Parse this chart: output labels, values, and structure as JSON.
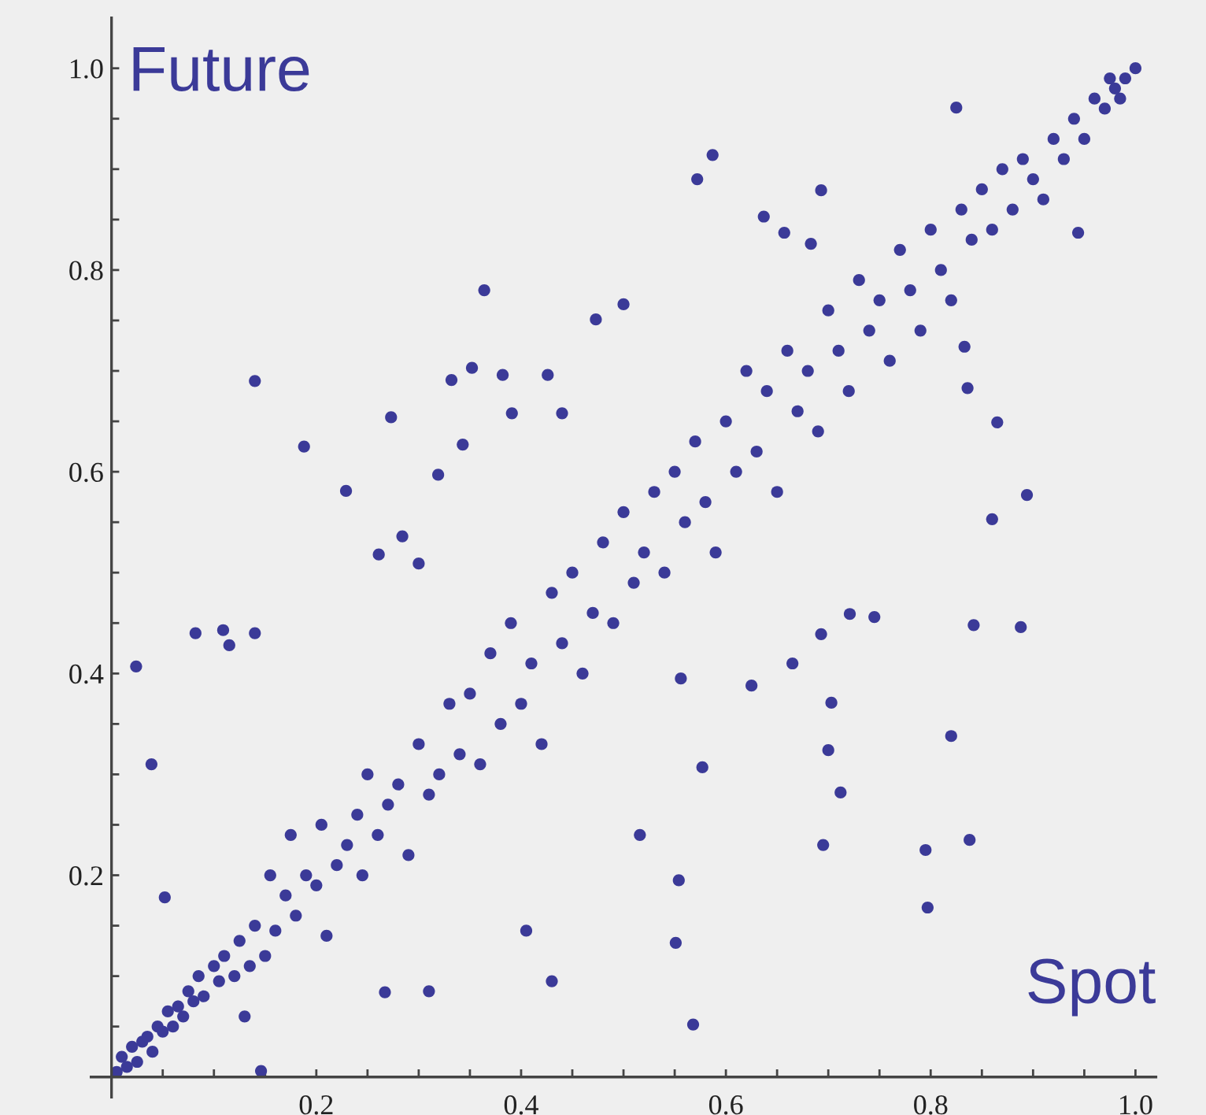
{
  "chart_data": {
    "type": "scatter",
    "xlabel": "Spot",
    "ylabel": "Future",
    "xlim": [
      -0.02,
      1.02
    ],
    "ylim": [
      -0.02,
      1.05
    ],
    "xticks": [
      {
        "value": 0.05,
        "label": null
      },
      {
        "value": 0.1,
        "label": null
      },
      {
        "value": 0.15,
        "label": null
      },
      0.2,
      {
        "value": 0.25,
        "label": null
      },
      {
        "value": 0.3,
        "label": null
      },
      {
        "value": 0.35,
        "label": null
      },
      0.4,
      {
        "value": 0.45,
        "label": null
      },
      {
        "value": 0.5,
        "label": null
      },
      {
        "value": 0.55,
        "label": null
      },
      0.6,
      {
        "value": 0.65,
        "label": null
      },
      {
        "value": 0.7,
        "label": null
      },
      {
        "value": 0.75,
        "label": null
      },
      0.8,
      {
        "value": 0.85,
        "label": null
      },
      {
        "value": 0.9,
        "label": null
      },
      {
        "value": 0.95,
        "label": null
      },
      {
        "value": 1.0,
        "label": "1.0"
      }
    ],
    "yticks": [
      {
        "value": 0.05,
        "label": null
      },
      {
        "value": 0.1,
        "label": null
      },
      {
        "value": 0.15,
        "label": null
      },
      0.2,
      {
        "value": 0.25,
        "label": null
      },
      {
        "value": 0.3,
        "label": null
      },
      {
        "value": 0.35,
        "label": null
      },
      0.4,
      {
        "value": 0.45,
        "label": null
      },
      {
        "value": 0.5,
        "label": null
      },
      {
        "value": 0.55,
        "label": null
      },
      0.6,
      {
        "value": 0.65,
        "label": null
      },
      {
        "value": 0.7,
        "label": null
      },
      {
        "value": 0.75,
        "label": null
      },
      0.8,
      {
        "value": 0.85,
        "label": null
      },
      {
        "value": 0.9,
        "label": null
      },
      {
        "value": 0.95,
        "label": null
      },
      {
        "value": 1.0,
        "label": "1.0"
      }
    ],
    "grid": false,
    "marker": "circle",
    "series": [
      {
        "color": "#3b3a98",
        "x": [
          0.005,
          0.01,
          0.015,
          0.02,
          0.025,
          0.03,
          0.035,
          0.04,
          0.045,
          0.05,
          0.055,
          0.06,
          0.065,
          0.07,
          0.075,
          0.08,
          0.085,
          0.09,
          0.1,
          0.105,
          0.11,
          0.12,
          0.125,
          0.13,
          0.135,
          0.14,
          0.15,
          0.155,
          0.16,
          0.17,
          0.175,
          0.18,
          0.19,
          0.2,
          0.205,
          0.21,
          0.22,
          0.23,
          0.24,
          0.245,
          0.25,
          0.26,
          0.27,
          0.28,
          0.29,
          0.3,
          0.31,
          0.32,
          0.33,
          0.34,
          0.35,
          0.36,
          0.37,
          0.38,
          0.39,
          0.4,
          0.41,
          0.42,
          0.43,
          0.44,
          0.45,
          0.46,
          0.47,
          0.48,
          0.49,
          0.5,
          0.51,
          0.52,
          0.53,
          0.54,
          0.55,
          0.56,
          0.57,
          0.58,
          0.59,
          0.6,
          0.61,
          0.62,
          0.63,
          0.64,
          0.65,
          0.66,
          0.67,
          0.68,
          0.69,
          0.7,
          0.71,
          0.72,
          0.73,
          0.74,
          0.75,
          0.76,
          0.77,
          0.78,
          0.79,
          0.8,
          0.81,
          0.82,
          0.83,
          0.84,
          0.85,
          0.86,
          0.87,
          0.88,
          0.89,
          0.9,
          0.91,
          0.92,
          0.93,
          0.94,
          0.95,
          0.96,
          0.97,
          0.98,
          0.99,
          1.0,
          0.985,
          0.975,
          0.024,
          0.14,
          0.188,
          0.364,
          0.587,
          0.572,
          0.825,
          0.5,
          0.039,
          0.082,
          0.109,
          0.14,
          0.115,
          0.052,
          0.568,
          0.551,
          0.554,
          0.516,
          0.405,
          0.43,
          0.31,
          0.267,
          0.146,
          0.695,
          0.712,
          0.797,
          0.795,
          0.838,
          0.82,
          0.842,
          0.888,
          0.7,
          0.703,
          0.721,
          0.745,
          0.693,
          0.577,
          0.556,
          0.665,
          0.625,
          0.894,
          0.86,
          0.865,
          0.836,
          0.833,
          0.944,
          0.284,
          0.229,
          0.261,
          0.273,
          0.3,
          0.319,
          0.332,
          0.352,
          0.343,
          0.391,
          0.382,
          0.473,
          0.426,
          0.44,
          0.693,
          0.637,
          0.657,
          0.683
        ],
        "values": [
          0.005,
          0.02,
          0.01,
          0.03,
          0.015,
          0.035,
          0.04,
          0.025,
          0.05,
          0.045,
          0.065,
          0.05,
          0.07,
          0.06,
          0.085,
          0.075,
          0.1,
          0.08,
          0.11,
          0.095,
          0.12,
          0.1,
          0.135,
          0.06,
          0.11,
          0.15,
          0.12,
          0.2,
          0.145,
          0.18,
          0.24,
          0.16,
          0.2,
          0.19,
          0.25,
          0.14,
          0.21,
          0.23,
          0.26,
          0.2,
          0.3,
          0.24,
          0.27,
          0.29,
          0.22,
          0.33,
          0.28,
          0.3,
          0.37,
          0.32,
          0.38,
          0.31,
          0.42,
          0.35,
          0.45,
          0.37,
          0.41,
          0.33,
          0.48,
          0.43,
          0.5,
          0.4,
          0.46,
          0.53,
          0.45,
          0.56,
          0.49,
          0.52,
          0.58,
          0.5,
          0.6,
          0.55,
          0.63,
          0.57,
          0.52,
          0.65,
          0.6,
          0.7,
          0.62,
          0.68,
          0.58,
          0.72,
          0.66,
          0.7,
          0.64,
          0.76,
          0.72,
          0.68,
          0.79,
          0.74,
          0.77,
          0.71,
          0.82,
          0.78,
          0.74,
          0.84,
          0.8,
          0.77,
          0.86,
          0.83,
          0.88,
          0.84,
          0.9,
          0.86,
          0.91,
          0.89,
          0.87,
          0.93,
          0.91,
          0.95,
          0.93,
          0.97,
          0.96,
          0.98,
          0.99,
          1.0,
          0.97,
          0.99,
          0.407,
          0.69,
          0.625,
          0.78,
          0.914,
          0.89,
          0.961,
          0.766,
          0.31,
          0.44,
          0.443,
          0.44,
          0.428,
          0.178,
          0.052,
          0.133,
          0.195,
          0.24,
          0.145,
          0.095,
          0.085,
          0.084,
          0.006,
          0.23,
          0.282,
          0.168,
          0.225,
          0.235,
          0.338,
          0.448,
          0.446,
          0.324,
          0.371,
          0.459,
          0.456,
          0.439,
          0.307,
          0.395,
          0.41,
          0.388,
          0.577,
          0.553,
          0.649,
          0.683,
          0.724,
          0.837,
          0.536,
          0.581,
          0.518,
          0.654,
          0.509,
          0.597,
          0.691,
          0.703,
          0.627,
          0.658,
          0.696,
          0.751,
          0.696,
          0.658,
          0.879,
          0.853,
          0.837,
          0.826
        ]
      }
    ]
  }
}
